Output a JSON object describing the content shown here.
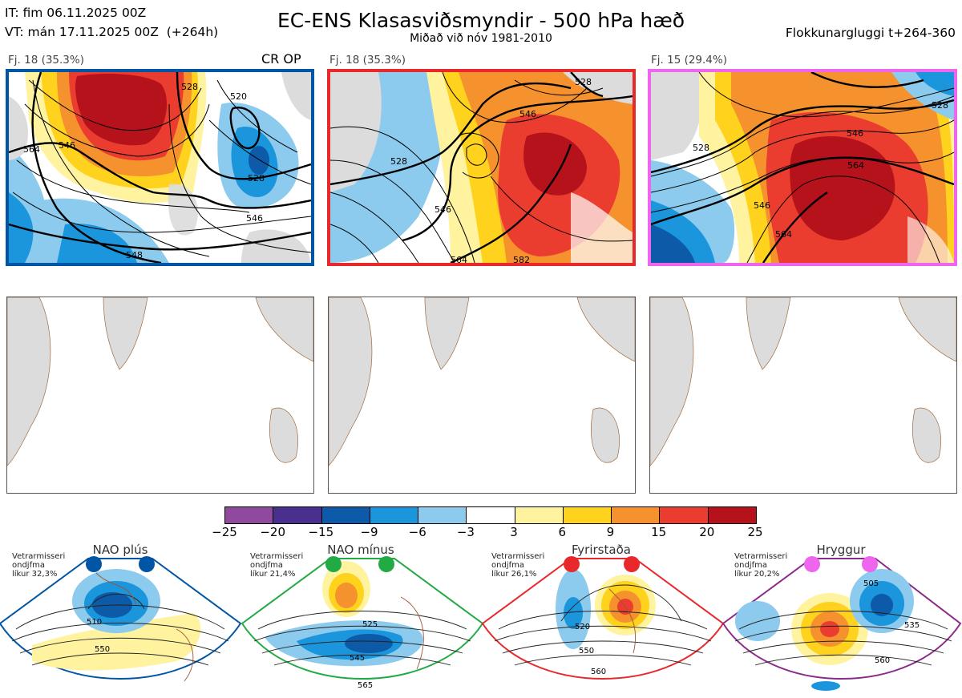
{
  "header": {
    "it_line": "IT: fim 06.11.2025 00Z",
    "vt_line": "VT: mán 17.11.2025 00Z  (+264h)",
    "title": "EC-ENS Klasasviðsmyndir - 500 hPa hæð",
    "subtitle": "Miðað við nóv 1981-2010",
    "window": "Flokkunargluggi t+264-360"
  },
  "panels": [
    {
      "label": "Fj. 18 (35.3%)",
      "tag": "CR OP",
      "border": "#0055a5",
      "contours": [
        "528",
        "520",
        "546",
        "528",
        "546",
        "548",
        "564"
      ]
    },
    {
      "label": "Fj. 18 (35.3%)",
      "tag": "",
      "border": "#e8282b",
      "contours": [
        "528",
        "546",
        "528",
        "546",
        "564",
        "582"
      ]
    },
    {
      "label": "Fj. 15 (29.4%)",
      "tag": "",
      "border": "#ee66ee",
      "contours": [
        "528",
        "546",
        "528",
        "564",
        "546",
        "564"
      ]
    }
  ],
  "colorbar": {
    "ticks": [
      "−25",
      "−20",
      "−15",
      "−9",
      "−6",
      "−3",
      "3",
      "6",
      "9",
      "15",
      "20",
      "25"
    ],
    "colors": [
      "#8f4a9e",
      "#4b2f8f",
      "#0d5aa8",
      "#1b96dd",
      "#8ccbed",
      "#ffffff",
      "#fff3a0",
      "#ffd21e",
      "#f5922e",
      "#ea3d2f",
      "#b5121b"
    ]
  },
  "regimes": [
    {
      "name": "NAO plús",
      "dot": "#0055a5",
      "border": "#0055a5",
      "note": "Vetrarmisseri\nondjfma\nlíkur 32,3%",
      "labels": [
        "510",
        "550"
      ]
    },
    {
      "name": "NAO mínus",
      "dot": "#22aa44",
      "border": "#22aa44",
      "note": "Vetrarmisseri\nondjfma\nlíkur 21,4%",
      "labels": [
        "525",
        "545",
        "565"
      ]
    },
    {
      "name": "Fyrirstaða",
      "dot": "#e8282b",
      "border": "#e8282b",
      "note": "Vetrarmisseri\nondjfma\nlíkur 26,1%",
      "labels": [
        "520",
        "550",
        "560"
      ]
    },
    {
      "name": "Hryggur",
      "dot": "#ee66ee",
      "border": "#8a2a8a",
      "note": "Vetrarmisseri\nondjfma\nlíkur 20,2%",
      "labels": [
        "505",
        "535",
        "560"
      ]
    }
  ]
}
